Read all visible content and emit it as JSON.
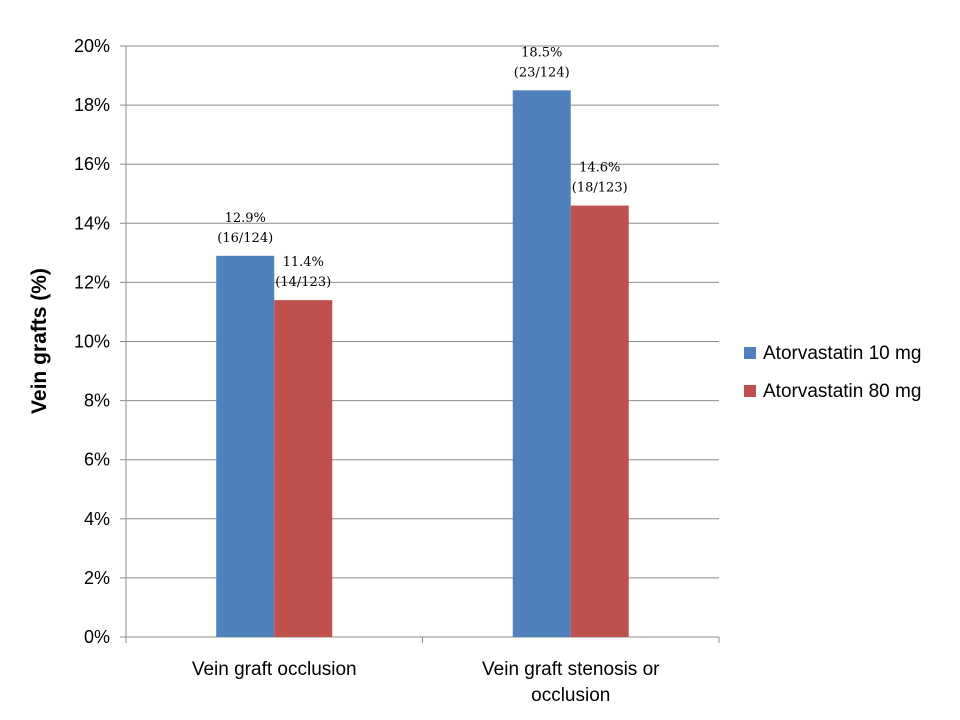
{
  "chart_data": {
    "type": "bar",
    "title": "",
    "xlabel": "",
    "ylabel": "Vein grafts (%)",
    "ylim": [
      0,
      20
    ],
    "yticks": [
      0,
      2,
      4,
      6,
      8,
      10,
      12,
      14,
      16,
      18,
      20
    ],
    "ytick_format": "percent",
    "grid": true,
    "legend_position": "right",
    "categories": [
      [
        "Vein graft occlusion"
      ],
      [
        "Vein graft stenosis or",
        "occlusion"
      ]
    ],
    "series": [
      {
        "name": "Atorvastatin 10 mg",
        "color": "#4f81bd",
        "values": [
          12.9,
          18.5
        ],
        "labels": [
          [
            "12.9%",
            "(16/124)"
          ],
          [
            "18.5%",
            "(23/124)"
          ]
        ]
      },
      {
        "name": "Atorvastatin 80 mg",
        "color": "#c0504d",
        "values": [
          11.4,
          14.6
        ],
        "labels": [
          [
            "11.4%",
            "(14/123)"
          ],
          [
            "14.6%",
            "(18/123)"
          ]
        ]
      }
    ]
  }
}
